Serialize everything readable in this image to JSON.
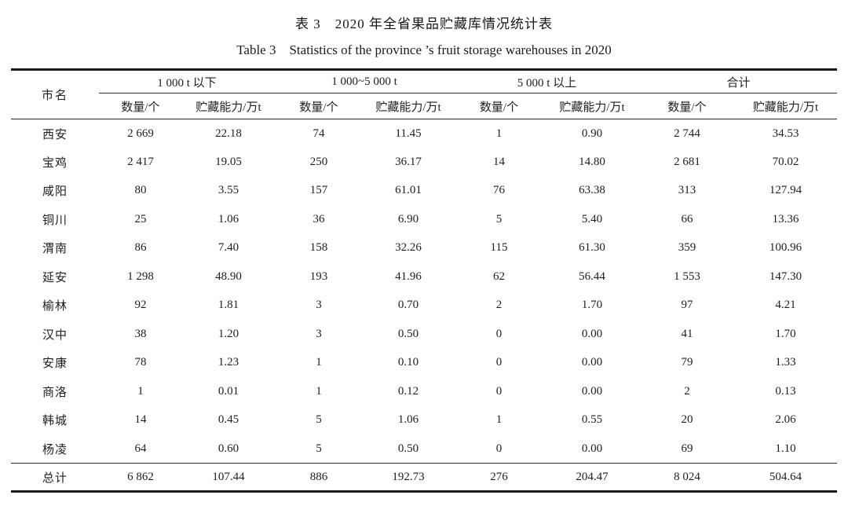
{
  "captions": {
    "zh": "表 3　2020 年全省果品贮藏库情况统计表",
    "en": "Table 3　Statistics of the province ’s fruit storage warehouses in 2020"
  },
  "table": {
    "row_header": "市名",
    "groups": [
      {
        "label": "1 000 t 以下"
      },
      {
        "label": "1 000~5 000 t"
      },
      {
        "label": "5 000 t 以上"
      },
      {
        "label": "合计"
      }
    ],
    "sub_headers": [
      "数量/个",
      "贮藏能力/万t"
    ],
    "rows": [
      {
        "city": "西安",
        "values": [
          "2 669",
          "22.18",
          "74",
          "11.45",
          "1",
          "0.90",
          "2 744",
          "34.53"
        ]
      },
      {
        "city": "宝鸡",
        "values": [
          "2 417",
          "19.05",
          "250",
          "36.17",
          "14",
          "14.80",
          "2 681",
          "70.02"
        ]
      },
      {
        "city": "咸阳",
        "values": [
          "80",
          "3.55",
          "157",
          "61.01",
          "76",
          "63.38",
          "313",
          "127.94"
        ]
      },
      {
        "city": "铜川",
        "values": [
          "25",
          "1.06",
          "36",
          "6.90",
          "5",
          "5.40",
          "66",
          "13.36"
        ]
      },
      {
        "city": "渭南",
        "values": [
          "86",
          "7.40",
          "158",
          "32.26",
          "115",
          "61.30",
          "359",
          "100.96"
        ]
      },
      {
        "city": "延安",
        "values": [
          "1 298",
          "48.90",
          "193",
          "41.96",
          "62",
          "56.44",
          "1 553",
          "147.30"
        ]
      },
      {
        "city": "榆林",
        "values": [
          "92",
          "1.81",
          "3",
          "0.70",
          "2",
          "1.70",
          "97",
          "4.21"
        ]
      },
      {
        "city": "汉中",
        "values": [
          "38",
          "1.20",
          "3",
          "0.50",
          "0",
          "0.00",
          "41",
          "1.70"
        ]
      },
      {
        "city": "安康",
        "values": [
          "78",
          "1.23",
          "1",
          "0.10",
          "0",
          "0.00",
          "79",
          "1.33"
        ]
      },
      {
        "city": "商洛",
        "values": [
          "1",
          "0.01",
          "1",
          "0.12",
          "0",
          "0.00",
          "2",
          "0.13"
        ]
      },
      {
        "city": "韩城",
        "values": [
          "14",
          "0.45",
          "5",
          "1.06",
          "1",
          "0.55",
          "20",
          "2.06"
        ]
      },
      {
        "city": "杨凌",
        "values": [
          "64",
          "0.60",
          "5",
          "0.50",
          "0",
          "0.00",
          "69",
          "1.10"
        ]
      }
    ],
    "total": {
      "city": "总计",
      "values": [
        "6 862",
        "107.44",
        "886",
        "192.73",
        "276",
        "204.47",
        "8 024",
        "504.64"
      ]
    }
  }
}
